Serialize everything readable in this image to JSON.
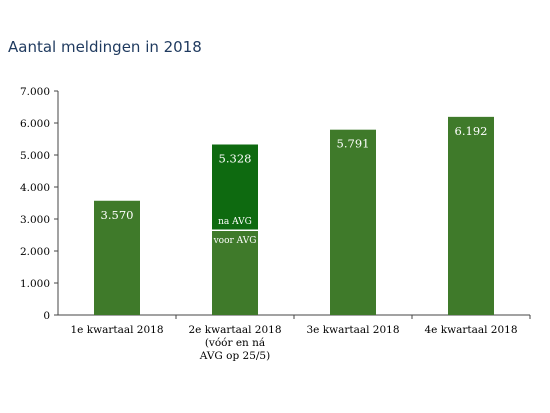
{
  "chart_data": {
    "type": "bar",
    "title": "Aantal meldingen in 2018",
    "xlabel": "",
    "ylabel": "",
    "ylim": [
      0,
      7000
    ],
    "yticks": [
      "0",
      "1.000",
      "2.000",
      "3.000",
      "4.000",
      "5.000",
      "6.000",
      "7.000"
    ],
    "grid": false,
    "categories": [
      [
        "1e kwartaal 2018"
      ],
      [
        "2e kwartaal 2018",
        "(vóór en ná",
        "AVG op 25/5)"
      ],
      [
        "3e kwartaal 2018"
      ],
      [
        "4e kwartaal 2018"
      ]
    ],
    "bars": [
      {
        "value": 3570,
        "label": "3.570",
        "segments": []
      },
      {
        "value": 5328,
        "label": "5.328",
        "segments": [
          {
            "name": "voor AVG",
            "value": 2650
          },
          {
            "name": "na AVG",
            "value": 2678
          }
        ]
      },
      {
        "value": 5791,
        "label": "5.791",
        "segments": []
      },
      {
        "value": 6192,
        "label": "6.192",
        "segments": []
      }
    ],
    "colors": {
      "bar": "#3f7a2a",
      "bar_dark": "#0e6a10",
      "axis": "#444444"
    }
  }
}
